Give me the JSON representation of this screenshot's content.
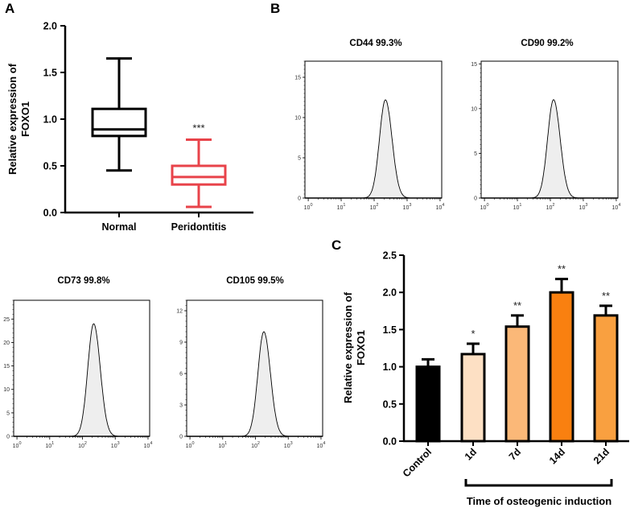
{
  "panel_labels": {
    "a": "A",
    "b": "B",
    "c": "C"
  },
  "chart_data": [
    {
      "id": "A",
      "type": "box",
      "ylabel_line1": "Relative expression of",
      "ylabel_line2": "FOXO1",
      "ylim": [
        0,
        2.0
      ],
      "yticks": [
        "0.0",
        "0.5",
        "1.0",
        "1.5",
        "2.0"
      ],
      "categories": [
        "Normal",
        "Peridontitis"
      ],
      "boxes": [
        {
          "name": "Normal",
          "min": 0.45,
          "q1": 0.82,
          "median": 0.89,
          "q3": 1.11,
          "max": 1.65,
          "color": "#000000",
          "annotation": ""
        },
        {
          "name": "Peridontitis",
          "min": 0.06,
          "q1": 0.3,
          "median": 0.38,
          "q3": 0.5,
          "max": 0.78,
          "color": "#e8434a",
          "annotation": "***"
        }
      ]
    },
    {
      "id": "B-CD44",
      "type": "area",
      "title": "CD44 99.3%",
      "x_scale": "log",
      "xticks": [
        "10^0",
        "10^1",
        "10^2",
        "10^3",
        "10^4"
      ],
      "yticks": [
        "0",
        "5",
        "10",
        "15"
      ],
      "ylim": [
        0,
        17
      ],
      "peak_intensity": 220,
      "peak_count": 12.2,
      "fill": "#eeeeee"
    },
    {
      "id": "B-CD90",
      "type": "area",
      "title": "CD90 99.2%",
      "x_scale": "log",
      "xticks": [
        "10^0",
        "10^1",
        "10^2",
        "10^3",
        "10^4"
      ],
      "yticks": [
        "0",
        "5",
        "10",
        "15"
      ],
      "ylim": [
        0,
        15.3
      ],
      "peak_intensity": 125,
      "peak_count": 11,
      "fill": "#eeeeee"
    },
    {
      "id": "B-CD73",
      "type": "area",
      "title": "CD73  99.8%",
      "x_scale": "log",
      "xticks": [
        "10^0",
        "10^1",
        "10^2",
        "10^3",
        "10^4"
      ],
      "yticks": [
        "0",
        "5",
        "10",
        "15",
        "20",
        "25"
      ],
      "ylim": [
        0,
        29
      ],
      "peak_intensity": 220,
      "peak_count": 24,
      "fill": "#eeeeee"
    },
    {
      "id": "B-CD105",
      "type": "area",
      "title": "CD105  99.5%",
      "x_scale": "log",
      "xticks": [
        "10^0",
        "10^1",
        "10^2",
        "10^3",
        "10^4"
      ],
      "yticks": [
        "0",
        "3",
        "6",
        "9",
        "12"
      ],
      "ylim": [
        0,
        13
      ],
      "peak_intensity": 180,
      "peak_count": 10,
      "fill": "#eeeeee"
    },
    {
      "id": "C",
      "type": "bar",
      "ylabel_line1": "Relative expression of",
      "ylabel_line2": "FOXO1",
      "xlabel": "Time of osteogenic induction",
      "ylim": [
        0,
        2.5
      ],
      "yticks": [
        "0.0",
        "0.5",
        "1.0",
        "1.5",
        "2.0",
        "2.5"
      ],
      "categories": [
        "Control",
        "1d",
        "7d",
        "14d",
        "21d"
      ],
      "values": [
        1.0,
        1.17,
        1.54,
        2.0,
        1.69
      ],
      "errors": [
        0.1,
        0.14,
        0.15,
        0.18,
        0.13
      ],
      "annotations": [
        "",
        "*",
        "**",
        "**",
        "**"
      ],
      "colors": [
        "#000000",
        "#fde0c4",
        "#fbb878",
        "#f98010",
        "#f9a040"
      ]
    }
  ]
}
